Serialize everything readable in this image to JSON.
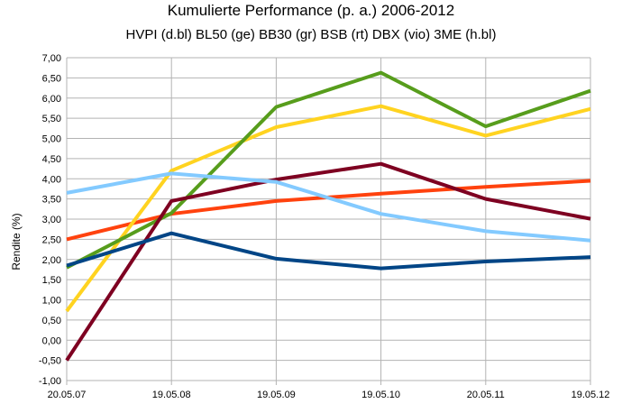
{
  "chart_data": {
    "type": "line",
    "title": "Kumulierte Performance (p. a.) 2006-2012",
    "subtitle": "HVPI (d.bl) BL50 (ge) BB30 (gr) BSB (rt) DBX (vio) 3ME (h.bl)",
    "xlabel": "",
    "ylabel": "Rendite (%)",
    "categories": [
      "20.05.07",
      "19.05.08",
      "19.05.09",
      "19.05.10",
      "20.05.11",
      "19.05.12"
    ],
    "ylim": [
      -1.0,
      7.0
    ],
    "yticks": [
      "-1,00",
      "-0,50",
      "0,00",
      "0,50",
      "1,00",
      "1,50",
      "2,00",
      "2,50",
      "3,00",
      "3,50",
      "4,00",
      "4,50",
      "5,00",
      "5,50",
      "6,00",
      "6,50",
      "7,00"
    ],
    "grid": true,
    "legend": "none",
    "series": [
      {
        "color": "#ff420e",
        "values": [
          2.5,
          3.13,
          3.45,
          3.63,
          3.8,
          3.95
        ]
      },
      {
        "color": "#ffd320",
        "values": [
          0.72,
          4.2,
          5.28,
          5.8,
          5.07,
          5.73
        ]
      },
      {
        "color": "#579d1c",
        "values": [
          1.8,
          3.15,
          5.78,
          6.63,
          5.3,
          6.18
        ]
      },
      {
        "color": "#7e0021",
        "values": [
          -0.5,
          3.45,
          3.98,
          4.37,
          3.5,
          3.01
        ]
      },
      {
        "color": "#83caff",
        "values": [
          3.65,
          4.13,
          3.92,
          3.13,
          2.7,
          2.47
        ]
      },
      {
        "color": "#004586",
        "values": [
          1.85,
          2.65,
          2.02,
          1.78,
          1.95,
          2.06
        ]
      }
    ]
  }
}
